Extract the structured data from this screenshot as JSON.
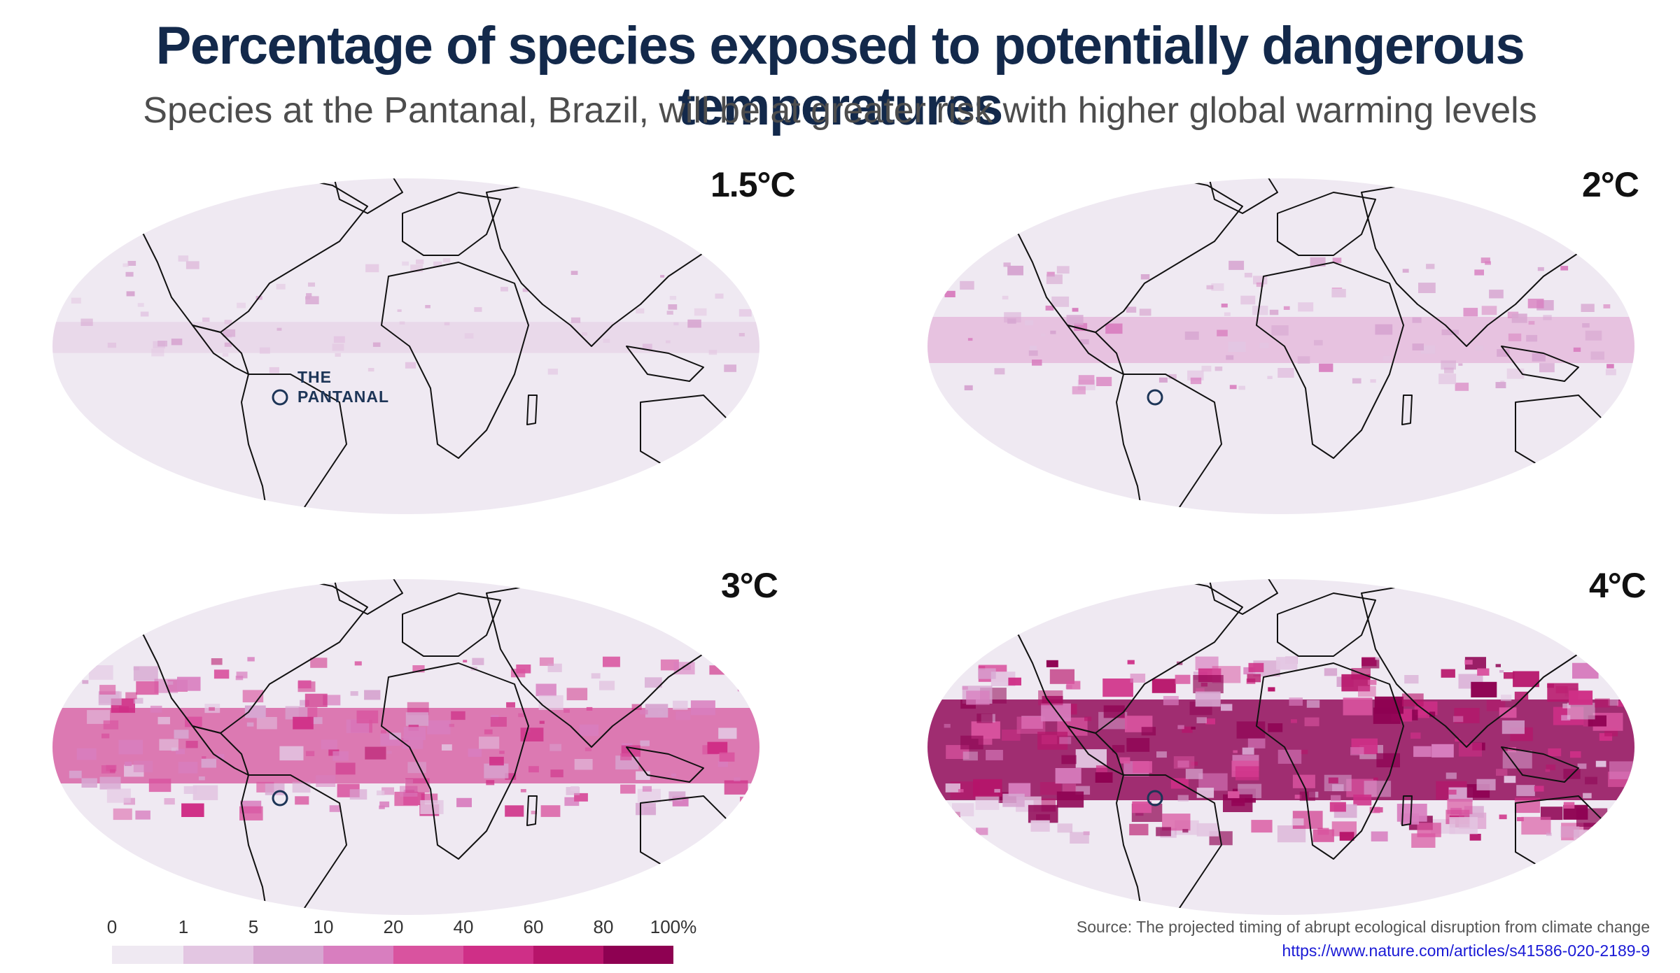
{
  "header": {
    "title": "Percentage of species exposed to potentially dangerous temperatures",
    "subtitle": "Species at the Pantanal, Brazil, will be at greater risk with higher global warming levels"
  },
  "maps": [
    {
      "label": "1.5°C",
      "intensity": 0.12,
      "marker_label_line1": "THE",
      "marker_label_line2": "PANTANAL"
    },
    {
      "label": "2°C",
      "intensity": 0.3
    },
    {
      "label": "3°C",
      "intensity": 0.65
    },
    {
      "label": "4°C",
      "intensity": 0.95
    }
  ],
  "legend": {
    "ticks": [
      "0",
      "1",
      "5",
      "10",
      "20",
      "40",
      "60",
      "80",
      "100%"
    ],
    "colors": [
      "#efe9f2",
      "#e3c6e2",
      "#d7a6d1",
      "#d87ebf",
      "#d9539f",
      "#cf2f87",
      "#b7146a",
      "#8e0152"
    ]
  },
  "source": {
    "text": "Source: The projected timing of abrupt ecological disruption from climate change",
    "link": "https://www.nature.com/articles/s41586-020-2189-9"
  },
  "colors": {
    "ocean_base": "#efe9f2",
    "title": "#13294b",
    "marker": "#1d3557",
    "border": "#111111"
  }
}
